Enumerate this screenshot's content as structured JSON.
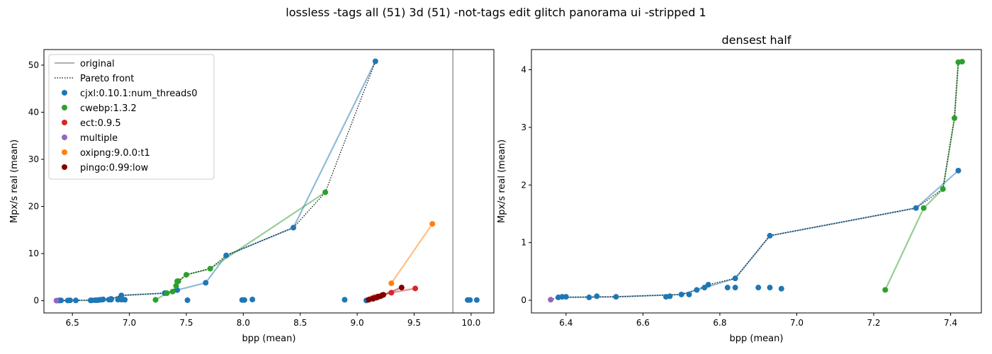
{
  "figure": {
    "suptitle": "lossless -tags all (51) 3d (51) -not-tags edit glitch panorama ui -stripped 1"
  },
  "colors": {
    "cjxl:0.10.1:num_threads0": "#1f77b4",
    "cwebp:1.3.2": "#2ca02c",
    "ect:0.9.5": "#d62728",
    "multiple": "#9467bd",
    "oxipng:9.0.0:t1": "#ff7f0e",
    "pingo:0.99:low": "#800000",
    "original": "#808080",
    "pareto": "#000000"
  },
  "chart_data": [
    {
      "type": "scatter",
      "title": "",
      "xlabel": "bpp (mean)",
      "ylabel": "Mpx/s real (mean)",
      "xlim": [
        6.25,
        10.2
      ],
      "ylim": [
        -2.6,
        53.3
      ],
      "xticks": [
        "6.5",
        "7.0",
        "7.5",
        "8.0",
        "8.5",
        "9.0",
        "9.5",
        "10.0"
      ],
      "yticks": [
        "0",
        "10",
        "20",
        "30",
        "40",
        "50"
      ],
      "original_bpp": 9.84,
      "legend": {
        "placement": "upper-left",
        "entries": [
          "original",
          "Pareto front",
          "cjxl:0.10.1:num_threads0",
          "cwebp:1.3.2",
          "ect:0.9.5",
          "multiple",
          "oxipng:9.0.0:t1",
          "pingo:0.99:low"
        ]
      },
      "series": [
        {
          "name": "cjxl:0.10.1:num_threads0",
          "points": [
            [
              6.38,
              0.05
            ],
            [
              6.39,
              0.06
            ],
            [
              6.4,
              0.06
            ],
            [
              6.46,
              0.05
            ],
            [
              6.48,
              0.07
            ],
            [
              6.53,
              0.06
            ],
            [
              6.66,
              0.06
            ],
            [
              6.67,
              0.07
            ],
            [
              6.7,
              0.1
            ],
            [
              6.72,
              0.1
            ],
            [
              6.74,
              0.18
            ],
            [
              6.76,
              0.22
            ],
            [
              6.77,
              0.27
            ],
            [
              6.82,
              0.22
            ],
            [
              6.84,
              0.38
            ],
            [
              6.84,
              0.22
            ],
            [
              6.9,
              0.22
            ],
            [
              6.93,
              1.12
            ],
            [
              6.93,
              0.22
            ],
            [
              6.96,
              0.2
            ],
            [
              7.31,
              1.6
            ],
            [
              7.42,
              2.25
            ],
            [
              7.51,
              0.1
            ],
            [
              7.67,
              3.8
            ],
            [
              7.85,
              9.6
            ],
            [
              7.99,
              0.15
            ],
            [
              8.01,
              0.15
            ],
            [
              8.08,
              0.25
            ],
            [
              8.44,
              15.5
            ],
            [
              8.89,
              0.2
            ],
            [
              9.08,
              0.05
            ],
            [
              9.16,
              50.8
            ],
            [
              9.97,
              0.15
            ],
            [
              9.99,
              0.15
            ],
            [
              10.05,
              0.15
            ]
          ],
          "line": [
            [
              6.38,
              0.05
            ],
            [
              6.53,
              0.06
            ],
            [
              6.7,
              0.1
            ],
            [
              6.84,
              0.38
            ],
            [
              6.93,
              1.12
            ],
            [
              7.31,
              1.6
            ],
            [
              7.42,
              2.25
            ],
            [
              7.67,
              3.8
            ],
            [
              7.85,
              9.6
            ],
            [
              8.44,
              15.5
            ],
            [
              9.16,
              50.8
            ]
          ]
        },
        {
          "name": "cwebp:1.3.2",
          "points": [
            [
              7.23,
              0.18
            ],
            [
              7.33,
              1.6
            ],
            [
              7.38,
              1.93
            ],
            [
              7.41,
              3.16
            ],
            [
              7.42,
              4.13
            ],
            [
              7.43,
              4.14
            ],
            [
              7.5,
              5.5
            ],
            [
              7.71,
              6.8
            ],
            [
              8.72,
              23.0
            ]
          ],
          "line": [
            [
              7.23,
              0.18
            ],
            [
              7.33,
              1.6
            ],
            [
              7.38,
              1.93
            ],
            [
              7.41,
              3.16
            ],
            [
              7.42,
              4.13
            ],
            [
              7.43,
              4.14
            ],
            [
              7.5,
              5.5
            ],
            [
              7.71,
              6.8
            ],
            [
              8.72,
              23.0
            ]
          ]
        },
        {
          "name": "ect:0.9.5",
          "points": [
            [
              9.11,
              0.3
            ],
            [
              9.13,
              0.5
            ],
            [
              9.15,
              0.7
            ],
            [
              9.18,
              0.9
            ],
            [
              9.22,
              1.2
            ],
            [
              9.3,
              1.7
            ],
            [
              9.51,
              2.6
            ]
          ],
          "line": [
            [
              9.11,
              0.3
            ],
            [
              9.3,
              1.7
            ],
            [
              9.51,
              2.6
            ]
          ]
        },
        {
          "name": "multiple",
          "points": [
            [
              6.36,
              0.01
            ]
          ],
          "line": []
        },
        {
          "name": "oxipng:9.0.0:t1",
          "points": [
            [
              9.3,
              3.7
            ],
            [
              9.66,
              16.3
            ]
          ],
          "line": [
            [
              9.3,
              3.7
            ],
            [
              9.66,
              16.3
            ]
          ]
        },
        {
          "name": "pingo:0.99:low",
          "points": [
            [
              9.1,
              0.2
            ],
            [
              9.14,
              0.4
            ],
            [
              9.17,
              0.65
            ],
            [
              9.19,
              0.85
            ],
            [
              9.21,
              1.0
            ],
            [
              9.23,
              1.25
            ],
            [
              9.39,
              2.8
            ]
          ],
          "line": [
            [
              9.1,
              0.2
            ],
            [
              9.23,
              1.25
            ],
            [
              9.39,
              2.8
            ]
          ]
        }
      ],
      "pareto": [
        [
          6.36,
          0.01
        ],
        [
          6.53,
          0.06
        ],
        [
          6.7,
          0.1
        ],
        [
          6.84,
          0.38
        ],
        [
          6.93,
          1.12
        ],
        [
          7.31,
          1.6
        ],
        [
          7.38,
          1.93
        ],
        [
          7.41,
          3.16
        ],
        [
          7.43,
          4.14
        ],
        [
          7.5,
          5.5
        ],
        [
          7.71,
          6.8
        ],
        [
          7.85,
          9.6
        ],
        [
          8.44,
          15.5
        ],
        [
          8.72,
          23.0
        ],
        [
          9.16,
          50.8
        ]
      ]
    },
    {
      "type": "scatter",
      "title": "densest half",
      "xlabel": "bpp (mean)",
      "ylabel": "Mpx/s real (mean)",
      "xlim": [
        6.31,
        7.48
      ],
      "ylim": [
        -0.22,
        4.35
      ],
      "xticks": [
        "6.4",
        "6.6",
        "6.8",
        "7.0",
        "7.2",
        "7.4"
      ],
      "yticks": [
        "0",
        "1",
        "2",
        "3",
        "4"
      ],
      "series": [
        {
          "name": "cjxl:0.10.1:num_threads0",
          "points": [
            [
              6.38,
              0.05
            ],
            [
              6.39,
              0.06
            ],
            [
              6.4,
              0.06
            ],
            [
              6.46,
              0.05
            ],
            [
              6.48,
              0.07
            ],
            [
              6.53,
              0.06
            ],
            [
              6.66,
              0.06
            ],
            [
              6.67,
              0.07
            ],
            [
              6.7,
              0.1
            ],
            [
              6.72,
              0.1
            ],
            [
              6.74,
              0.18
            ],
            [
              6.76,
              0.22
            ],
            [
              6.77,
              0.27
            ],
            [
              6.82,
              0.22
            ],
            [
              6.84,
              0.38
            ],
            [
              6.84,
              0.22
            ],
            [
              6.9,
              0.22
            ],
            [
              6.93,
              1.12
            ],
            [
              6.93,
              0.22
            ],
            [
              6.96,
              0.2
            ],
            [
              7.31,
              1.6
            ],
            [
              7.42,
              2.25
            ]
          ],
          "line": [
            [
              6.38,
              0.05
            ],
            [
              6.53,
              0.06
            ],
            [
              6.7,
              0.1
            ],
            [
              6.84,
              0.38
            ],
            [
              6.93,
              1.12
            ],
            [
              7.31,
              1.6
            ],
            [
              7.42,
              2.25
            ]
          ]
        },
        {
          "name": "cwebp:1.3.2",
          "points": [
            [
              7.23,
              0.18
            ],
            [
              7.33,
              1.6
            ],
            [
              7.38,
              1.93
            ],
            [
              7.41,
              3.16
            ],
            [
              7.42,
              4.13
            ],
            [
              7.43,
              4.14
            ]
          ],
          "line": [
            [
              7.23,
              0.18
            ],
            [
              7.33,
              1.6
            ],
            [
              7.38,
              1.93
            ],
            [
              7.41,
              3.16
            ],
            [
              7.42,
              4.13
            ],
            [
              7.43,
              4.14
            ]
          ]
        },
        {
          "name": "multiple",
          "points": [
            [
              6.36,
              0.01
            ]
          ],
          "line": []
        }
      ],
      "pareto": [
        [
          6.36,
          0.01
        ],
        [
          6.38,
          0.05
        ],
        [
          6.53,
          0.06
        ],
        [
          6.7,
          0.1
        ],
        [
          6.74,
          0.18
        ],
        [
          6.77,
          0.27
        ],
        [
          6.84,
          0.38
        ],
        [
          6.93,
          1.12
        ],
        [
          7.31,
          1.6
        ],
        [
          7.38,
          1.93
        ],
        [
          7.41,
          3.16
        ],
        [
          7.42,
          4.13
        ],
        [
          7.43,
          4.14
        ]
      ]
    }
  ]
}
